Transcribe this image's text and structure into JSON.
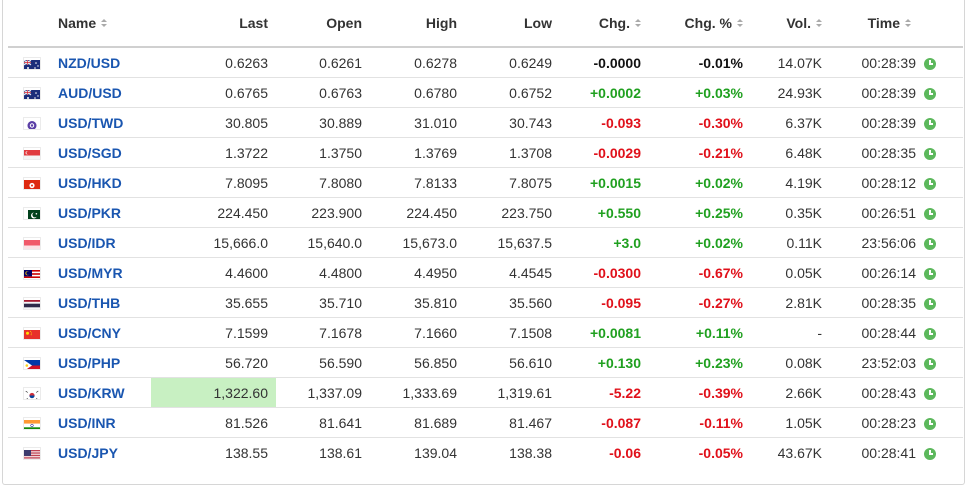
{
  "columns": {
    "name": "Name",
    "last": "Last",
    "open": "Open",
    "high": "High",
    "low": "Low",
    "chg": "Chg.",
    "chg_pct": "Chg. %",
    "vol": "Vol.",
    "time": "Time"
  },
  "colors": {
    "up": "#20a020",
    "down": "#e0101a",
    "link": "#1a56b0",
    "highlight": "#c8f0c2",
    "clock": "#5cb85c"
  },
  "rows": [
    {
      "flag": "australia-flag-icon",
      "name": "NZD/USD",
      "last": "0.6263",
      "open": "0.6261",
      "high": "0.6278",
      "low": "0.6249",
      "chg": "-0.0000",
      "chg_pct": "-0.01%",
      "vol": "14.07K",
      "time": "00:28:39",
      "dir": "neutral"
    },
    {
      "flag": "australia-flag-icon",
      "name": "AUD/USD",
      "last": "0.6765",
      "open": "0.6763",
      "high": "0.6780",
      "low": "0.6752",
      "chg": "+0.0002",
      "chg_pct": "+0.03%",
      "vol": "24.93K",
      "time": "00:28:39",
      "dir": "up"
    },
    {
      "flag": "taiwan-flag-icon",
      "name": "USD/TWD",
      "last": "30.805",
      "open": "30.889",
      "high": "31.010",
      "low": "30.743",
      "chg": "-0.093",
      "chg_pct": "-0.30%",
      "vol": "6.37K",
      "time": "00:28:39",
      "dir": "down"
    },
    {
      "flag": "singapore-flag-icon",
      "name": "USD/SGD",
      "last": "1.3722",
      "open": "1.3750",
      "high": "1.3769",
      "low": "1.3708",
      "chg": "-0.0029",
      "chg_pct": "-0.21%",
      "vol": "6.48K",
      "time": "00:28:35",
      "dir": "down"
    },
    {
      "flag": "hong-kong-flag-icon",
      "name": "USD/HKD",
      "last": "7.8095",
      "open": "7.8080",
      "high": "7.8133",
      "low": "7.8075",
      "chg": "+0.0015",
      "chg_pct": "+0.02%",
      "vol": "4.19K",
      "time": "00:28:12",
      "dir": "up"
    },
    {
      "flag": "pakistan-flag-icon",
      "name": "USD/PKR",
      "last": "224.450",
      "open": "223.900",
      "high": "224.450",
      "low": "223.750",
      "chg": "+0.550",
      "chg_pct": "+0.25%",
      "vol": "0.35K",
      "time": "00:26:51",
      "dir": "up"
    },
    {
      "flag": "indonesia-flag-icon",
      "name": "USD/IDR",
      "last": "15,666.0",
      "open": "15,640.0",
      "high": "15,673.0",
      "low": "15,637.5",
      "chg": "+3.0",
      "chg_pct": "+0.02%",
      "vol": "0.11K",
      "time": "23:56:06",
      "dir": "up"
    },
    {
      "flag": "malaysia-flag-icon",
      "name": "USD/MYR",
      "last": "4.4600",
      "open": "4.4800",
      "high": "4.4950",
      "low": "4.4545",
      "chg": "-0.0300",
      "chg_pct": "-0.67%",
      "vol": "0.05K",
      "time": "00:26:14",
      "dir": "down"
    },
    {
      "flag": "thailand-flag-icon",
      "name": "USD/THB",
      "last": "35.655",
      "open": "35.710",
      "high": "35.810",
      "low": "35.560",
      "chg": "-0.095",
      "chg_pct": "-0.27%",
      "vol": "2.81K",
      "time": "00:28:35",
      "dir": "down"
    },
    {
      "flag": "china-flag-icon",
      "name": "USD/CNY",
      "last": "7.1599",
      "open": "7.1678",
      "high": "7.1660",
      "low": "7.1508",
      "chg": "+0.0081",
      "chg_pct": "+0.11%",
      "vol": "-",
      "time": "00:28:44",
      "dir": "up"
    },
    {
      "flag": "philippines-flag-icon",
      "name": "USD/PHP",
      "last": "56.720",
      "open": "56.590",
      "high": "56.850",
      "low": "56.610",
      "chg": "+0.130",
      "chg_pct": "+0.23%",
      "vol": "0.08K",
      "time": "23:52:03",
      "dir": "up"
    },
    {
      "flag": "south-korea-flag-icon",
      "name": "USD/KRW",
      "last": "1,322.60",
      "open": "1,337.09",
      "high": "1,333.69",
      "low": "1,319.61",
      "chg": "-5.22",
      "chg_pct": "-0.39%",
      "vol": "2.66K",
      "time": "00:28:43",
      "dir": "down",
      "highlight_last": true
    },
    {
      "flag": "india-flag-icon",
      "name": "USD/INR",
      "last": "81.526",
      "open": "81.641",
      "high": "81.689",
      "low": "81.467",
      "chg": "-0.087",
      "chg_pct": "-0.11%",
      "vol": "1.05K",
      "time": "00:28:23",
      "dir": "down"
    },
    {
      "flag": "usa-flag-icon",
      "name": "USD/JPY",
      "last": "138.55",
      "open": "138.61",
      "high": "139.04",
      "low": "138.38",
      "chg": "-0.06",
      "chg_pct": "-0.05%",
      "vol": "43.67K",
      "time": "00:28:41",
      "dir": "down"
    }
  ]
}
